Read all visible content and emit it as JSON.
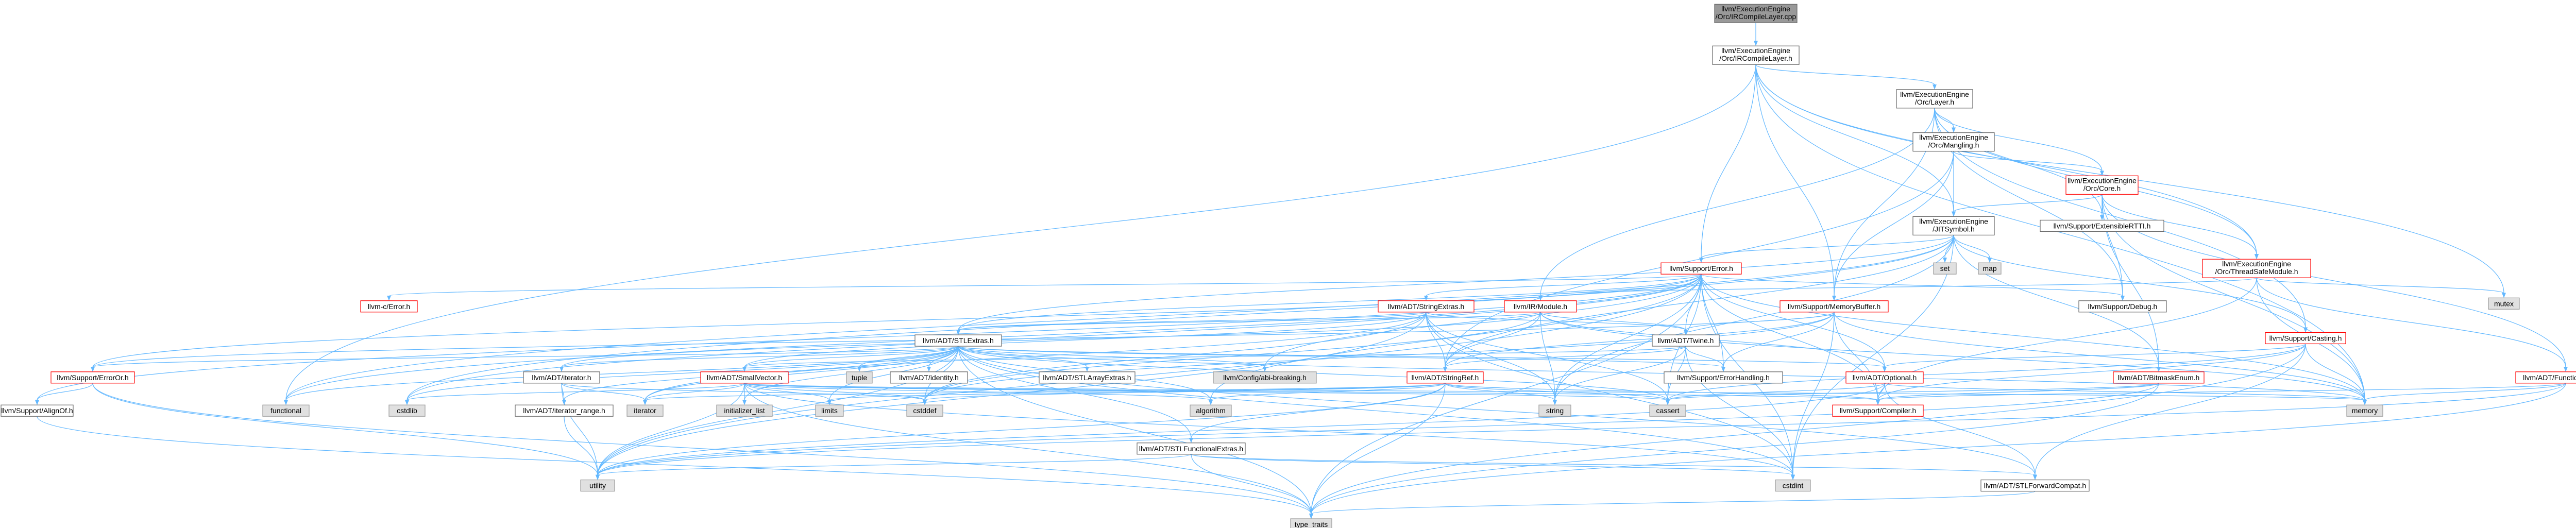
{
  "colors": {
    "edge": "#63b8ff",
    "node_fill": "#ffffff",
    "node_stroke": "#666666",
    "node_red_stroke": "#ff0000",
    "node_grey_fill": "#e0e0e0",
    "root_fill": "#999999",
    "text": "#000000"
  },
  "nodes": [
    {
      "id": "root",
      "lines": [
        "llvm/ExecutionEngine",
        "/Orc/IRCompileLayer.cpp"
      ],
      "style": "root"
    },
    {
      "id": "ircl",
      "lines": [
        "llvm/ExecutionEngine",
        "/Orc/IRCompileLayer.h"
      ],
      "style": "normal"
    },
    {
      "id": "layer",
      "lines": [
        "llvm/ExecutionEngine",
        "/Orc/Layer.h"
      ],
      "style": "normal"
    },
    {
      "id": "mangling",
      "lines": [
        "llvm/ExecutionEngine",
        "/Orc/Mangling.h"
      ],
      "style": "normal"
    },
    {
      "id": "core",
      "lines": [
        "llvm/ExecutionEngine",
        "/Orc/Core.h"
      ],
      "style": "red"
    },
    {
      "id": "extrtti",
      "lines": [
        "llvm/Support/ExtensibleRTTI.h"
      ],
      "style": "normal"
    },
    {
      "id": "jitsym",
      "lines": [
        "llvm/ExecutionEngine",
        "/JITSymbol.h"
      ],
      "style": "normal"
    },
    {
      "id": "set",
      "lines": [
        "set"
      ],
      "style": "grey"
    },
    {
      "id": "map",
      "lines": [
        "map"
      ],
      "style": "grey"
    },
    {
      "id": "tsm",
      "lines": [
        "llvm/ExecutionEngine",
        "/Orc/ThreadSafeModule.h"
      ],
      "style": "red"
    },
    {
      "id": "mutex",
      "lines": [
        "mutex"
      ],
      "style": "grey"
    },
    {
      "id": "error",
      "lines": [
        "llvm/Support/Error.h"
      ],
      "style": "red"
    },
    {
      "id": "cerror",
      "lines": [
        "llvm-c/Error.h"
      ],
      "style": "red"
    },
    {
      "id": "strextras",
      "lines": [
        "llvm/ADT/StringExtras.h"
      ],
      "style": "red"
    },
    {
      "id": "irmodule",
      "lines": [
        "llvm/IR/Module.h"
      ],
      "style": "red"
    },
    {
      "id": "membuf",
      "lines": [
        "llvm/Support/MemoryBuffer.h"
      ],
      "style": "red"
    },
    {
      "id": "debug",
      "lines": [
        "llvm/Support/Debug.h"
      ],
      "style": "normal"
    },
    {
      "id": "casting",
      "lines": [
        "llvm/Support/Casting.h"
      ],
      "style": "red"
    },
    {
      "id": "fnextras",
      "lines": [
        "llvm/ADT/FunctionExtras.h"
      ],
      "style": "red"
    },
    {
      "id": "stlextras",
      "lines": [
        "llvm/ADT/STLExtras.h"
      ],
      "style": "normal"
    },
    {
      "id": "twine",
      "lines": [
        "llvm/ADT/Twine.h"
      ],
      "style": "normal"
    },
    {
      "id": "errorhandling",
      "lines": [
        "llvm/Support/ErrorHandling.h"
      ],
      "style": "normal"
    },
    {
      "id": "optional",
      "lines": [
        "llvm/ADT/Optional.h"
      ],
      "style": "red"
    },
    {
      "id": "bitmask",
      "lines": [
        "llvm/ADT/BitmaskEnum.h"
      ],
      "style": "red"
    },
    {
      "id": "errorort",
      "lines": [
        "llvm/Support/ErrorOr.h"
      ],
      "style": "red"
    },
    {
      "id": "alignof",
      "lines": [
        "llvm/Support/AlignOf.h"
      ],
      "style": "normal"
    },
    {
      "id": "functional",
      "lines": [
        "functional"
      ],
      "style": "grey"
    },
    {
      "id": "cstdlib",
      "lines": [
        "cstdlib"
      ],
      "style": "grey"
    },
    {
      "id": "iterator_h",
      "lines": [
        "llvm/ADT/iterator.h"
      ],
      "style": "normal"
    },
    {
      "id": "itrange",
      "lines": [
        "llvm/ADT/iterator_range.h"
      ],
      "style": "normal"
    },
    {
      "id": "smallvec",
      "lines": [
        "llvm/ADT/SmallVector.h"
      ],
      "style": "red"
    },
    {
      "id": "tuple",
      "lines": [
        "tuple"
      ],
      "style": "grey"
    },
    {
      "id": "identity",
      "lines": [
        "llvm/ADT/identity.h"
      ],
      "style": "normal"
    },
    {
      "id": "stlarray",
      "lines": [
        "llvm/ADT/STLArrayExtras.h"
      ],
      "style": "normal"
    },
    {
      "id": "abibreak",
      "lines": [
        "llvm/Config/abi-breaking.h"
      ],
      "style": "grey"
    },
    {
      "id": "strref",
      "lines": [
        "llvm/ADT/StringRef.h"
      ],
      "style": "red"
    },
    {
      "id": "stlfunc",
      "lines": [
        "llvm/ADT/STLFunctionalExtras.h"
      ],
      "style": "normal"
    },
    {
      "id": "compiler",
      "lines": [
        "llvm/Support/Compiler.h"
      ],
      "style": "red"
    },
    {
      "id": "iterator",
      "lines": [
        "iterator"
      ],
      "style": "grey"
    },
    {
      "id": "initlist",
      "lines": [
        "initializer_list"
      ],
      "style": "grey"
    },
    {
      "id": "limits",
      "lines": [
        "limits"
      ],
      "style": "grey"
    },
    {
      "id": "cstddef",
      "lines": [
        "cstddef"
      ],
      "style": "grey"
    },
    {
      "id": "algorithm",
      "lines": [
        "algorithm"
      ],
      "style": "grey"
    },
    {
      "id": "string",
      "lines": [
        "string"
      ],
      "style": "grey"
    },
    {
      "id": "cassert",
      "lines": [
        "cassert"
      ],
      "style": "grey"
    },
    {
      "id": "memory",
      "lines": [
        "memory"
      ],
      "style": "grey"
    },
    {
      "id": "utility",
      "lines": [
        "utility"
      ],
      "style": "grey"
    },
    {
      "id": "cstdint",
      "lines": [
        "cstdint"
      ],
      "style": "grey"
    },
    {
      "id": "stlfwd",
      "lines": [
        "llvm/ADT/STLForwardCompat.h"
      ],
      "style": "normal"
    },
    {
      "id": "typetraits",
      "lines": [
        "type_traits"
      ],
      "style": "grey"
    }
  ],
  "edges": [
    [
      "root",
      "ircl"
    ],
    [
      "ircl",
      "layer"
    ],
    [
      "ircl",
      "error"
    ],
    [
      "ircl",
      "membuf"
    ],
    [
      "ircl",
      "mutex"
    ],
    [
      "ircl",
      "functional"
    ],
    [
      "ircl",
      "memory"
    ],
    [
      "ircl",
      "tsm"
    ],
    [
      "ircl",
      "jitsym"
    ],
    [
      "layer",
      "mangling"
    ],
    [
      "layer",
      "core"
    ],
    [
      "layer",
      "tsm"
    ],
    [
      "layer",
      "irmodule"
    ],
    [
      "layer",
      "membuf"
    ],
    [
      "layer",
      "extrtti"
    ],
    [
      "layer",
      "casting"
    ],
    [
      "layer",
      "debug"
    ],
    [
      "mangling",
      "core"
    ],
    [
      "mangling",
      "membuf"
    ],
    [
      "mangling",
      "jitsym"
    ],
    [
      "mangling",
      "strref"
    ],
    [
      "core",
      "extrtti"
    ],
    [
      "core",
      "jitsym"
    ],
    [
      "core",
      "bitmask"
    ],
    [
      "core",
      "debug"
    ],
    [
      "core",
      "fnextras"
    ],
    [
      "core",
      "memory"
    ],
    [
      "core",
      "tsm"
    ],
    [
      "jitsym",
      "set"
    ],
    [
      "jitsym",
      "map"
    ],
    [
      "jitsym",
      "error"
    ],
    [
      "jitsym",
      "functional"
    ],
    [
      "jitsym",
      "cstdint"
    ],
    [
      "jitsym",
      "string"
    ],
    [
      "jitsym",
      "strref"
    ],
    [
      "jitsym",
      "bitmask"
    ],
    [
      "jitsym",
      "cstdlib"
    ],
    [
      "jitsym",
      "casting"
    ],
    [
      "jitsym",
      "stlextras"
    ],
    [
      "tsm",
      "irmodule"
    ],
    [
      "tsm",
      "mutex"
    ],
    [
      "tsm",
      "fnextras"
    ],
    [
      "tsm",
      "memory"
    ],
    [
      "tsm",
      "compiler"
    ],
    [
      "error",
      "cerror"
    ],
    [
      "error",
      "strextras"
    ],
    [
      "error",
      "stlextras"
    ],
    [
      "error",
      "twine"
    ],
    [
      "error",
      "abibreak"
    ],
    [
      "error",
      "errorhandling"
    ],
    [
      "error",
      "errorort"
    ],
    [
      "error",
      "alignof"
    ],
    [
      "error",
      "functional"
    ],
    [
      "error",
      "cstdlib"
    ],
    [
      "error",
      "compiler"
    ],
    [
      "error",
      "debug"
    ],
    [
      "error",
      "optional"
    ],
    [
      "error",
      "string"
    ],
    [
      "error",
      "cassert"
    ],
    [
      "error",
      "memory"
    ],
    [
      "error",
      "utility"
    ],
    [
      "error",
      "cstdint"
    ],
    [
      "error",
      "typetraits"
    ],
    [
      "error",
      "algorithm"
    ],
    [
      "strextras",
      "stlextras"
    ],
    [
      "strextras",
      "strref"
    ],
    [
      "strextras",
      "smallvec"
    ],
    [
      "strextras",
      "twine"
    ],
    [
      "strextras",
      "iterator"
    ],
    [
      "strextras",
      "cstddef"
    ],
    [
      "strextras",
      "cstdint"
    ],
    [
      "strextras",
      "string"
    ],
    [
      "strextras",
      "utility"
    ],
    [
      "strextras",
      "cassert"
    ],
    [
      "irmodule",
      "stlextras"
    ],
    [
      "irmodule",
      "strref"
    ],
    [
      "irmodule",
      "twine"
    ],
    [
      "irmodule",
      "optional"
    ],
    [
      "irmodule",
      "cstddef"
    ],
    [
      "irmodule",
      "string"
    ],
    [
      "irmodule",
      "memory"
    ],
    [
      "irmodule",
      "iterator_h"
    ],
    [
      "membuf",
      "twine"
    ],
    [
      "membuf",
      "strref"
    ],
    [
      "membuf",
      "errorort"
    ],
    [
      "membuf",
      "memory"
    ],
    [
      "membuf",
      "cstddef"
    ],
    [
      "membuf",
      "cstdint"
    ],
    [
      "membuf",
      "compiler"
    ],
    [
      "membuf",
      "errorhandling"
    ],
    [
      "casting",
      "memory"
    ],
    [
      "casting",
      "cassert"
    ],
    [
      "casting",
      "typetraits"
    ],
    [
      "casting",
      "optional"
    ],
    [
      "casting",
      "compiler"
    ],
    [
      "casting",
      "stlfwd"
    ],
    [
      "fnextras",
      "memory"
    ],
    [
      "fnextras",
      "typetraits"
    ],
    [
      "fnextras",
      "compiler"
    ],
    [
      "fnextras",
      "utility"
    ],
    [
      "stlextras",
      "functional"
    ],
    [
      "stlextras",
      "cstdlib"
    ],
    [
      "stlextras",
      "errorort"
    ],
    [
      "stlextras",
      "iterator_h"
    ],
    [
      "stlextras",
      "itrange"
    ],
    [
      "stlextras",
      "smallvec"
    ],
    [
      "stlextras",
      "tuple"
    ],
    [
      "stlextras",
      "identity"
    ],
    [
      "stlextras",
      "stlarray"
    ],
    [
      "stlextras",
      "abibreak"
    ],
    [
      "stlextras",
      "stlfunc"
    ],
    [
      "stlextras",
      "optional"
    ],
    [
      "stlextras",
      "errorhandling"
    ],
    [
      "stlextras",
      "iterator"
    ],
    [
      "stlextras",
      "initlist"
    ],
    [
      "stlextras",
      "limits"
    ],
    [
      "stlextras",
      "cstddef"
    ],
    [
      "stlextras",
      "algorithm"
    ],
    [
      "stlextras",
      "cassert"
    ],
    [
      "stlextras",
      "memory"
    ],
    [
      "stlextras",
      "utility"
    ],
    [
      "stlextras",
      "cstdint"
    ],
    [
      "stlextras",
      "typetraits"
    ],
    [
      "stlextras",
      "stlfwd"
    ],
    [
      "twine",
      "strref"
    ],
    [
      "twine",
      "errorhandling"
    ],
    [
      "twine",
      "cassert"
    ],
    [
      "twine",
      "cstdint"
    ],
    [
      "twine",
      "string"
    ],
    [
      "twine",
      "smallvec"
    ],
    [
      "optional",
      "compiler"
    ],
    [
      "optional",
      "cassert"
    ],
    [
      "optional",
      "memory"
    ],
    [
      "optional",
      "utility"
    ],
    [
      "optional",
      "stlfwd"
    ],
    [
      "bitmask",
      "cassert"
    ],
    [
      "bitmask",
      "typetraits"
    ],
    [
      "bitmask",
      "utility"
    ],
    [
      "bitmask",
      "compiler"
    ],
    [
      "errorort",
      "alignof"
    ],
    [
      "errorort",
      "typetraits"
    ],
    [
      "errorort",
      "utility"
    ],
    [
      "alignof",
      "typetraits"
    ],
    [
      "iterator_h",
      "itrange"
    ],
    [
      "iterator_h",
      "iterator"
    ],
    [
      "iterator_h",
      "cstddef"
    ],
    [
      "iterator_h",
      "utility"
    ],
    [
      "itrange",
      "utility"
    ],
    [
      "smallvec",
      "compiler"
    ],
    [
      "smallvec",
      "algorithm"
    ],
    [
      "smallvec",
      "cassert"
    ],
    [
      "smallvec",
      "cstddef"
    ],
    [
      "smallvec",
      "cstdlib"
    ],
    [
      "smallvec",
      "iterator"
    ],
    [
      "smallvec",
      "initlist"
    ],
    [
      "smallvec",
      "limits"
    ],
    [
      "smallvec",
      "memory"
    ],
    [
      "smallvec",
      "utility"
    ],
    [
      "smallvec",
      "typetraits"
    ],
    [
      "smallvec",
      "cstdint"
    ],
    [
      "strref",
      "stlfunc"
    ],
    [
      "strref",
      "compiler"
    ],
    [
      "strref",
      "algorithm"
    ],
    [
      "strref",
      "cassert"
    ],
    [
      "strref",
      "cstddef"
    ],
    [
      "strref",
      "limits"
    ],
    [
      "strref",
      "string"
    ],
    [
      "strref",
      "typetraits"
    ],
    [
      "strref",
      "utility"
    ],
    [
      "strref",
      "iterator"
    ],
    [
      "stlfunc",
      "cstdint"
    ],
    [
      "stlfunc",
      "typetraits"
    ],
    [
      "stlfunc",
      "utility"
    ],
    [
      "stlfunc",
      "stlfwd"
    ],
    [
      "stlfwd",
      "typetraits"
    ]
  ]
}
